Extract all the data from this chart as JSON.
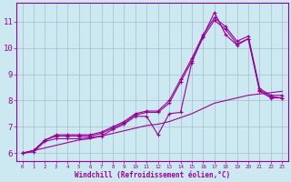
{
  "xlabel": "Windchill (Refroidissement éolien,°C)",
  "bg_color": "#cce8f0",
  "line_color": "#990099",
  "grid_color": "#aabbcc",
  "xlim": [
    -0.5,
    23.5
  ],
  "ylim": [
    5.7,
    11.7
  ],
  "yticks": [
    6,
    7,
    8,
    9,
    10,
    11
  ],
  "xticks": [
    0,
    1,
    2,
    3,
    4,
    5,
    6,
    7,
    8,
    9,
    10,
    11,
    12,
    13,
    14,
    15,
    16,
    17,
    18,
    19,
    20,
    21,
    22,
    23
  ],
  "line_smooth_x": [
    0,
    1,
    2,
    3,
    4,
    5,
    6,
    7,
    8,
    9,
    10,
    11,
    12,
    13,
    14,
    15,
    16,
    17,
    18,
    19,
    20,
    21,
    22,
    23
  ],
  "line_smooth_y": [
    6.0,
    6.1,
    6.2,
    6.3,
    6.4,
    6.5,
    6.55,
    6.65,
    6.75,
    6.85,
    6.95,
    7.05,
    7.1,
    7.2,
    7.35,
    7.5,
    7.7,
    7.9,
    8.0,
    8.1,
    8.2,
    8.25,
    8.3,
    8.35
  ],
  "line_upper_x": [
    0,
    1,
    2,
    3,
    4,
    5,
    6,
    7,
    8,
    9,
    10,
    11,
    12,
    13,
    14,
    15,
    16,
    17,
    18,
    19,
    20,
    21,
    22,
    23
  ],
  "line_upper_y": [
    6.0,
    6.1,
    6.5,
    6.7,
    6.7,
    6.7,
    6.7,
    6.8,
    7.0,
    7.2,
    7.5,
    7.6,
    7.6,
    8.0,
    8.8,
    9.6,
    10.5,
    11.15,
    10.8,
    10.25,
    10.45,
    8.45,
    8.2,
    8.2
  ],
  "line_mid_x": [
    0,
    1,
    2,
    3,
    4,
    5,
    6,
    7,
    8,
    9,
    10,
    11,
    12,
    13,
    14,
    15,
    16,
    17,
    18,
    19,
    20,
    21,
    22,
    23
  ],
  "line_mid_y": [
    6.0,
    6.1,
    6.5,
    6.65,
    6.65,
    6.65,
    6.65,
    6.75,
    6.95,
    7.15,
    7.45,
    7.55,
    7.55,
    7.9,
    8.7,
    9.5,
    10.4,
    11.05,
    10.7,
    10.15,
    10.35,
    8.35,
    8.1,
    8.1
  ],
  "line_jagged_x": [
    0,
    1,
    2,
    3,
    4,
    5,
    6,
    7,
    8,
    9,
    10,
    11,
    12,
    13,
    14,
    15,
    16,
    17,
    18,
    19,
    20,
    21,
    22,
    23
  ],
  "line_jagged_y": [
    6.0,
    6.05,
    6.45,
    6.55,
    6.55,
    6.55,
    6.6,
    6.65,
    6.9,
    7.1,
    7.4,
    7.4,
    6.7,
    7.5,
    7.55,
    9.45,
    10.45,
    11.35,
    10.5,
    10.1,
    10.35,
    8.4,
    8.15,
    8.1
  ]
}
